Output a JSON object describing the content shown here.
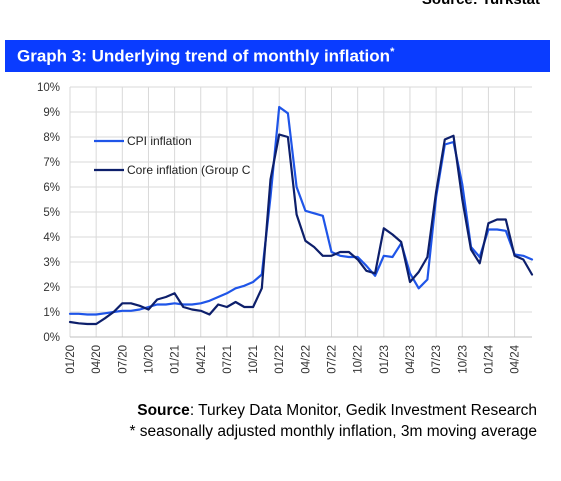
{
  "header": {
    "source_top": "Source: Turkstat"
  },
  "graph_title": "Graph 3: Underlying trend of monthly inflation",
  "graph_title_sup": "*",
  "colors": {
    "title_bg": "#0a3cff",
    "cpi": "#1f55e8",
    "core": "#0d1f6b",
    "grid": "#d9d9d9"
  },
  "chart_data": {
    "type": "line",
    "title": "Graph 3: Underlying trend of monthly inflation*",
    "xlabel": "",
    "ylabel": "",
    "ylim": [
      0,
      10
    ],
    "ytick_labels": [
      "0%",
      "1%",
      "2%",
      "3%",
      "4%",
      "5%",
      "6%",
      "7%",
      "8%",
      "9%",
      "10%"
    ],
    "x_tick_labels": [
      "01/20",
      "04/20",
      "07/20",
      "10/20",
      "01/21",
      "04/21",
      "07/21",
      "10/21",
      "01/22",
      "04/22",
      "07/22",
      "10/22",
      "01/23",
      "04/23",
      "07/23",
      "10/23",
      "01/24",
      "04/24"
    ],
    "grid": true,
    "legend_position": "upper-left",
    "x": [
      "01/20",
      "02/20",
      "03/20",
      "04/20",
      "05/20",
      "06/20",
      "07/20",
      "08/20",
      "09/20",
      "10/20",
      "11/20",
      "12/20",
      "01/21",
      "02/21",
      "03/21",
      "04/21",
      "05/21",
      "06/21",
      "07/21",
      "08/21",
      "09/21",
      "10/21",
      "11/21",
      "12/21",
      "01/22",
      "02/22",
      "03/22",
      "04/22",
      "05/22",
      "06/22",
      "07/22",
      "08/22",
      "09/22",
      "10/22",
      "11/22",
      "12/22",
      "01/23",
      "02/23",
      "03/23",
      "04/23",
      "05/23",
      "06/23",
      "07/23",
      "08/23",
      "09/23",
      "10/23",
      "11/23",
      "12/23",
      "01/24",
      "02/24",
      "03/24",
      "04/24",
      "05/24",
      "06/24"
    ],
    "series": [
      {
        "name": "CPI inflation",
        "values": [
          0.93,
          0.93,
          0.9,
          0.9,
          0.95,
          1.0,
          1.05,
          1.05,
          1.1,
          1.2,
          1.3,
          1.3,
          1.35,
          1.3,
          1.3,
          1.35,
          1.45,
          1.6,
          1.75,
          1.95,
          2.05,
          2.2,
          2.5,
          5.6,
          9.2,
          8.95,
          6.0,
          5.05,
          4.95,
          4.85,
          3.4,
          3.25,
          3.2,
          3.2,
          2.85,
          2.45,
          3.25,
          3.2,
          3.75,
          2.55,
          1.95,
          2.3,
          5.6,
          7.7,
          7.8,
          6.1,
          3.6,
          3.2,
          4.3,
          4.3,
          4.25,
          3.3,
          3.25,
          3.1
        ]
      },
      {
        "name": "Core inflation (Group C",
        "values": [
          0.6,
          0.55,
          0.52,
          0.52,
          0.75,
          1.0,
          1.35,
          1.35,
          1.25,
          1.1,
          1.5,
          1.6,
          1.75,
          1.2,
          1.1,
          1.05,
          0.9,
          1.3,
          1.2,
          1.4,
          1.2,
          1.2,
          1.95,
          6.3,
          8.1,
          8.0,
          4.9,
          3.85,
          3.6,
          3.25,
          3.25,
          3.4,
          3.4,
          3.1,
          2.65,
          2.55,
          4.35,
          4.1,
          3.8,
          2.2,
          2.6,
          3.2,
          5.8,
          7.9,
          8.05,
          5.5,
          3.5,
          2.95,
          4.55,
          4.7,
          4.7,
          3.25,
          3.1,
          2.5
        ]
      }
    ]
  },
  "footer": {
    "source_label": "Source",
    "source_text": ": Turkey Data Monitor, Gedik Investment Research",
    "note": "* seasonally adjusted monthly inflation, 3m moving average"
  }
}
